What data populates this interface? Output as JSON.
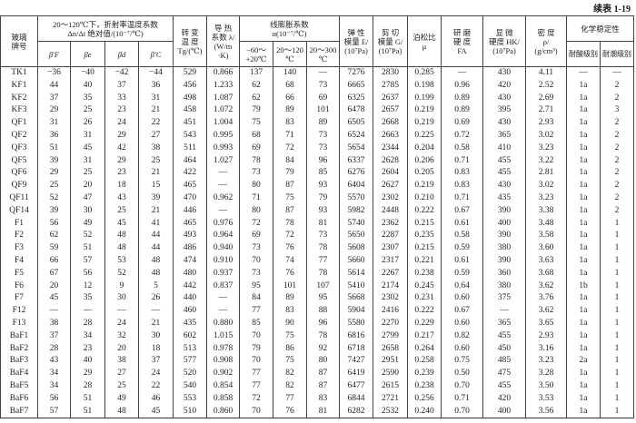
{
  "caption": "续表 1-19",
  "header": {
    "grade": "玻璃\n牌号",
    "dn_group": "20～120℃下，折射率温度系数\nΔn/Δt 绝对值/(10⁻⁷/℃)",
    "beta_F": "β′F",
    "beta_e": "βe",
    "beta_d": "βd",
    "beta_C": "β′C",
    "tg": "转  变\n温  度\nTg/(℃)",
    "lambda": "导  热\n系数 λ/\n(W/m\n·K)",
    "alpha_group": "线膨胀系数\nα(10⁻⁷/℃)",
    "alpha_1": "−60～\n+20℃",
    "alpha_2": "20～120\n℃",
    "alpha_3": "20～300\n℃",
    "E": "弹  性\n模量 E/\n(10⁷Pa)",
    "G": "剪  切\n模量 G/\n(10⁷Pa)",
    "mu": "泊松比\nμ",
    "FA": "研  磨\n硬  度\nFA",
    "HK": "显  微\n硬度 HK/\n(10⁷Pa)",
    "rho": "密  度\nρ/\n(g/cm³)",
    "chem_group": "化学稳定性",
    "acid": "耐酸级别",
    "moisture": "耐潮级别"
  },
  "rows": [
    [
      "TK1",
      "−36",
      "−40",
      "−42",
      "−44",
      "529",
      "0.866",
      "137",
      "140",
      "—",
      "7276",
      "2830",
      "0.285",
      "—",
      "430",
      "4.11",
      "—",
      "—"
    ],
    [
      "KF1",
      "44",
      "40",
      "37",
      "36",
      "456",
      "1.233",
      "62",
      "68",
      "73",
      "6665",
      "2785",
      "0.198",
      "0.96",
      "420",
      "2.52",
      "1a",
      "2"
    ],
    [
      "KF2",
      "37",
      "35",
      "33",
      "31",
      "498",
      "1.087",
      "62",
      "66",
      "69",
      "6325",
      "2637",
      "0.199",
      "0.89",
      "430",
      "2.69",
      "1a",
      "2"
    ],
    [
      "KF3",
      "29",
      "25",
      "23",
      "21",
      "458",
      "1.072",
      "79",
      "89",
      "101",
      "6478",
      "2657",
      "0.219",
      "0.89",
      "395",
      "2.71",
      "1a",
      "3"
    ],
    [
      "QF1",
      "31",
      "26",
      "24",
      "22",
      "451",
      "1.004",
      "75",
      "83",
      "89",
      "6505",
      "2668",
      "0.219",
      "0.69",
      "430",
      "2.93",
      "1a",
      "2"
    ],
    [
      "QF2",
      "36",
      "31",
      "29",
      "27",
      "543",
      "0.995",
      "68",
      "71",
      "73",
      "6524",
      "2663",
      "0.225",
      "0.72",
      "365",
      "3.02",
      "1a",
      "2"
    ],
    [
      "QF3",
      "51",
      "45",
      "42",
      "38",
      "511",
      "0.993",
      "69",
      "72",
      "73",
      "5654",
      "2344",
      "0.204",
      "0.58",
      "410",
      "3.23",
      "1a",
      "2"
    ],
    [
      "QF5",
      "39",
      "31",
      "29",
      "25",
      "464",
      "1.027",
      "78",
      "84",
      "96",
      "6337",
      "2628",
      "0.206",
      "0.71",
      "455",
      "3.22",
      "1a",
      "2"
    ],
    [
      "QF6",
      "29",
      "25",
      "23",
      "21",
      "422",
      "—",
      "73",
      "79",
      "85",
      "6276",
      "2604",
      "0.205",
      "0.83",
      "455",
      "2.81",
      "1a",
      "2"
    ],
    [
      "QF9",
      "25",
      "20",
      "18",
      "15",
      "465",
      "—",
      "80",
      "87",
      "93",
      "6404",
      "2627",
      "0.219",
      "0.83",
      "430",
      "3.02",
      "1a",
      "2"
    ],
    [
      "QF11",
      "52",
      "47",
      "43",
      "39",
      "470",
      "0.962",
      "71",
      "75",
      "79",
      "5570",
      "2302",
      "0.210",
      "0.71",
      "435",
      "3.23",
      "1a",
      "2"
    ],
    [
      "QF14",
      "39",
      "30",
      "25",
      "21",
      "446",
      "—",
      "80",
      "87",
      "93",
      "5982",
      "2448",
      "0.222",
      "0.67",
      "390",
      "3.38",
      "1a",
      "2"
    ],
    [
      "F1",
      "56",
      "49",
      "45",
      "41",
      "465",
      "0.976",
      "72",
      "78",
      "81",
      "5740",
      "2362",
      "0.215",
      "0.61",
      "400",
      "3.48",
      "1a",
      "1"
    ],
    [
      "F2",
      "62",
      "52",
      "48",
      "44",
      "493",
      "0.964",
      "69",
      "72",
      "73",
      "5650",
      "2287",
      "0.235",
      "0.58",
      "390",
      "3.58",
      "1a",
      "1"
    ],
    [
      "F3",
      "59",
      "51",
      "48",
      "44",
      "486",
      "0.940",
      "73",
      "76",
      "78",
      "5608",
      "2307",
      "0.215",
      "0.59",
      "380",
      "3.60",
      "1a",
      "1"
    ],
    [
      "F4",
      "66",
      "57",
      "53",
      "48",
      "474",
      "0.910",
      "70",
      "74",
      "77",
      "5660",
      "2317",
      "0.221",
      "0.61",
      "390",
      "3.63",
      "1a",
      "1"
    ],
    [
      "F5",
      "67",
      "56",
      "52",
      "48",
      "480",
      "0.937",
      "73",
      "76",
      "78",
      "5614",
      "2267",
      "0.238",
      "0.59",
      "360",
      "3.68",
      "1a",
      "1"
    ],
    [
      "F6",
      "20",
      "12",
      "9",
      "5",
      "442",
      "0.837",
      "95",
      "101",
      "107",
      "5410",
      "2174",
      "0.245",
      "0.64",
      "380",
      "3.62",
      "1b",
      "1"
    ],
    [
      "F7",
      "45",
      "35",
      "30",
      "26",
      "440",
      "—",
      "84",
      "89",
      "95",
      "5668",
      "2302",
      "0.231",
      "0.60",
      "375",
      "3.76",
      "1a",
      "1"
    ],
    [
      "F12",
      "—",
      "—",
      "—",
      "—",
      "460",
      "—",
      "77",
      "83",
      "88",
      "5904",
      "2416",
      "0.222",
      "0.67",
      "—",
      "3.62",
      "1a",
      "1"
    ],
    [
      "F13",
      "38",
      "28",
      "24",
      "21",
      "435",
      "0.880",
      "85",
      "90",
      "96",
      "5580",
      "2270",
      "0.229",
      "0.60",
      "365",
      "3.65",
      "1a",
      "1"
    ],
    [
      "BaF1",
      "37",
      "34",
      "32",
      "30",
      "602",
      "1.015",
      "70",
      "75",
      "78",
      "6816",
      "2799",
      "0.217",
      "0.82",
      "455",
      "2.93",
      "1a",
      "1"
    ],
    [
      "BaF2",
      "28",
      "23",
      "20",
      "18",
      "513",
      "0.978",
      "79",
      "86",
      "92",
      "6718",
      "2658",
      "0.264",
      "0.60",
      "450",
      "3.16",
      "1a",
      "1"
    ],
    [
      "BaF3",
      "43",
      "40",
      "38",
      "37",
      "577",
      "0.908",
      "70",
      "75",
      "80",
      "7427",
      "2951",
      "0.258",
      "0.75",
      "485",
      "3.23",
      "2a",
      "1"
    ],
    [
      "BaF4",
      "34",
      "29",
      "27",
      "24",
      "520",
      "0.902",
      "77",
      "82",
      "87",
      "6419",
      "2590",
      "0.239",
      "0.50",
      "475",
      "3.28",
      "1a",
      "1"
    ],
    [
      "BaF5",
      "34",
      "28",
      "25",
      "22",
      "540",
      "0.854",
      "77",
      "82",
      "87",
      "6477",
      "2615",
      "0.238",
      "0.70",
      "455",
      "3.50",
      "1a",
      "1"
    ],
    [
      "BaF6",
      "56",
      "51",
      "49",
      "46",
      "553",
      "0.858",
      "72",
      "77",
      "83",
      "6844",
      "2721",
      "0.256",
      "0.71",
      "420",
      "3.53",
      "1a",
      "1"
    ],
    [
      "BaF7",
      "57",
      "51",
      "48",
      "45",
      "510",
      "0.860",
      "70",
      "76",
      "81",
      "6282",
      "2532",
      "0.240",
      "0.70",
      "400",
      "3.56",
      "1a",
      "1"
    ]
  ]
}
